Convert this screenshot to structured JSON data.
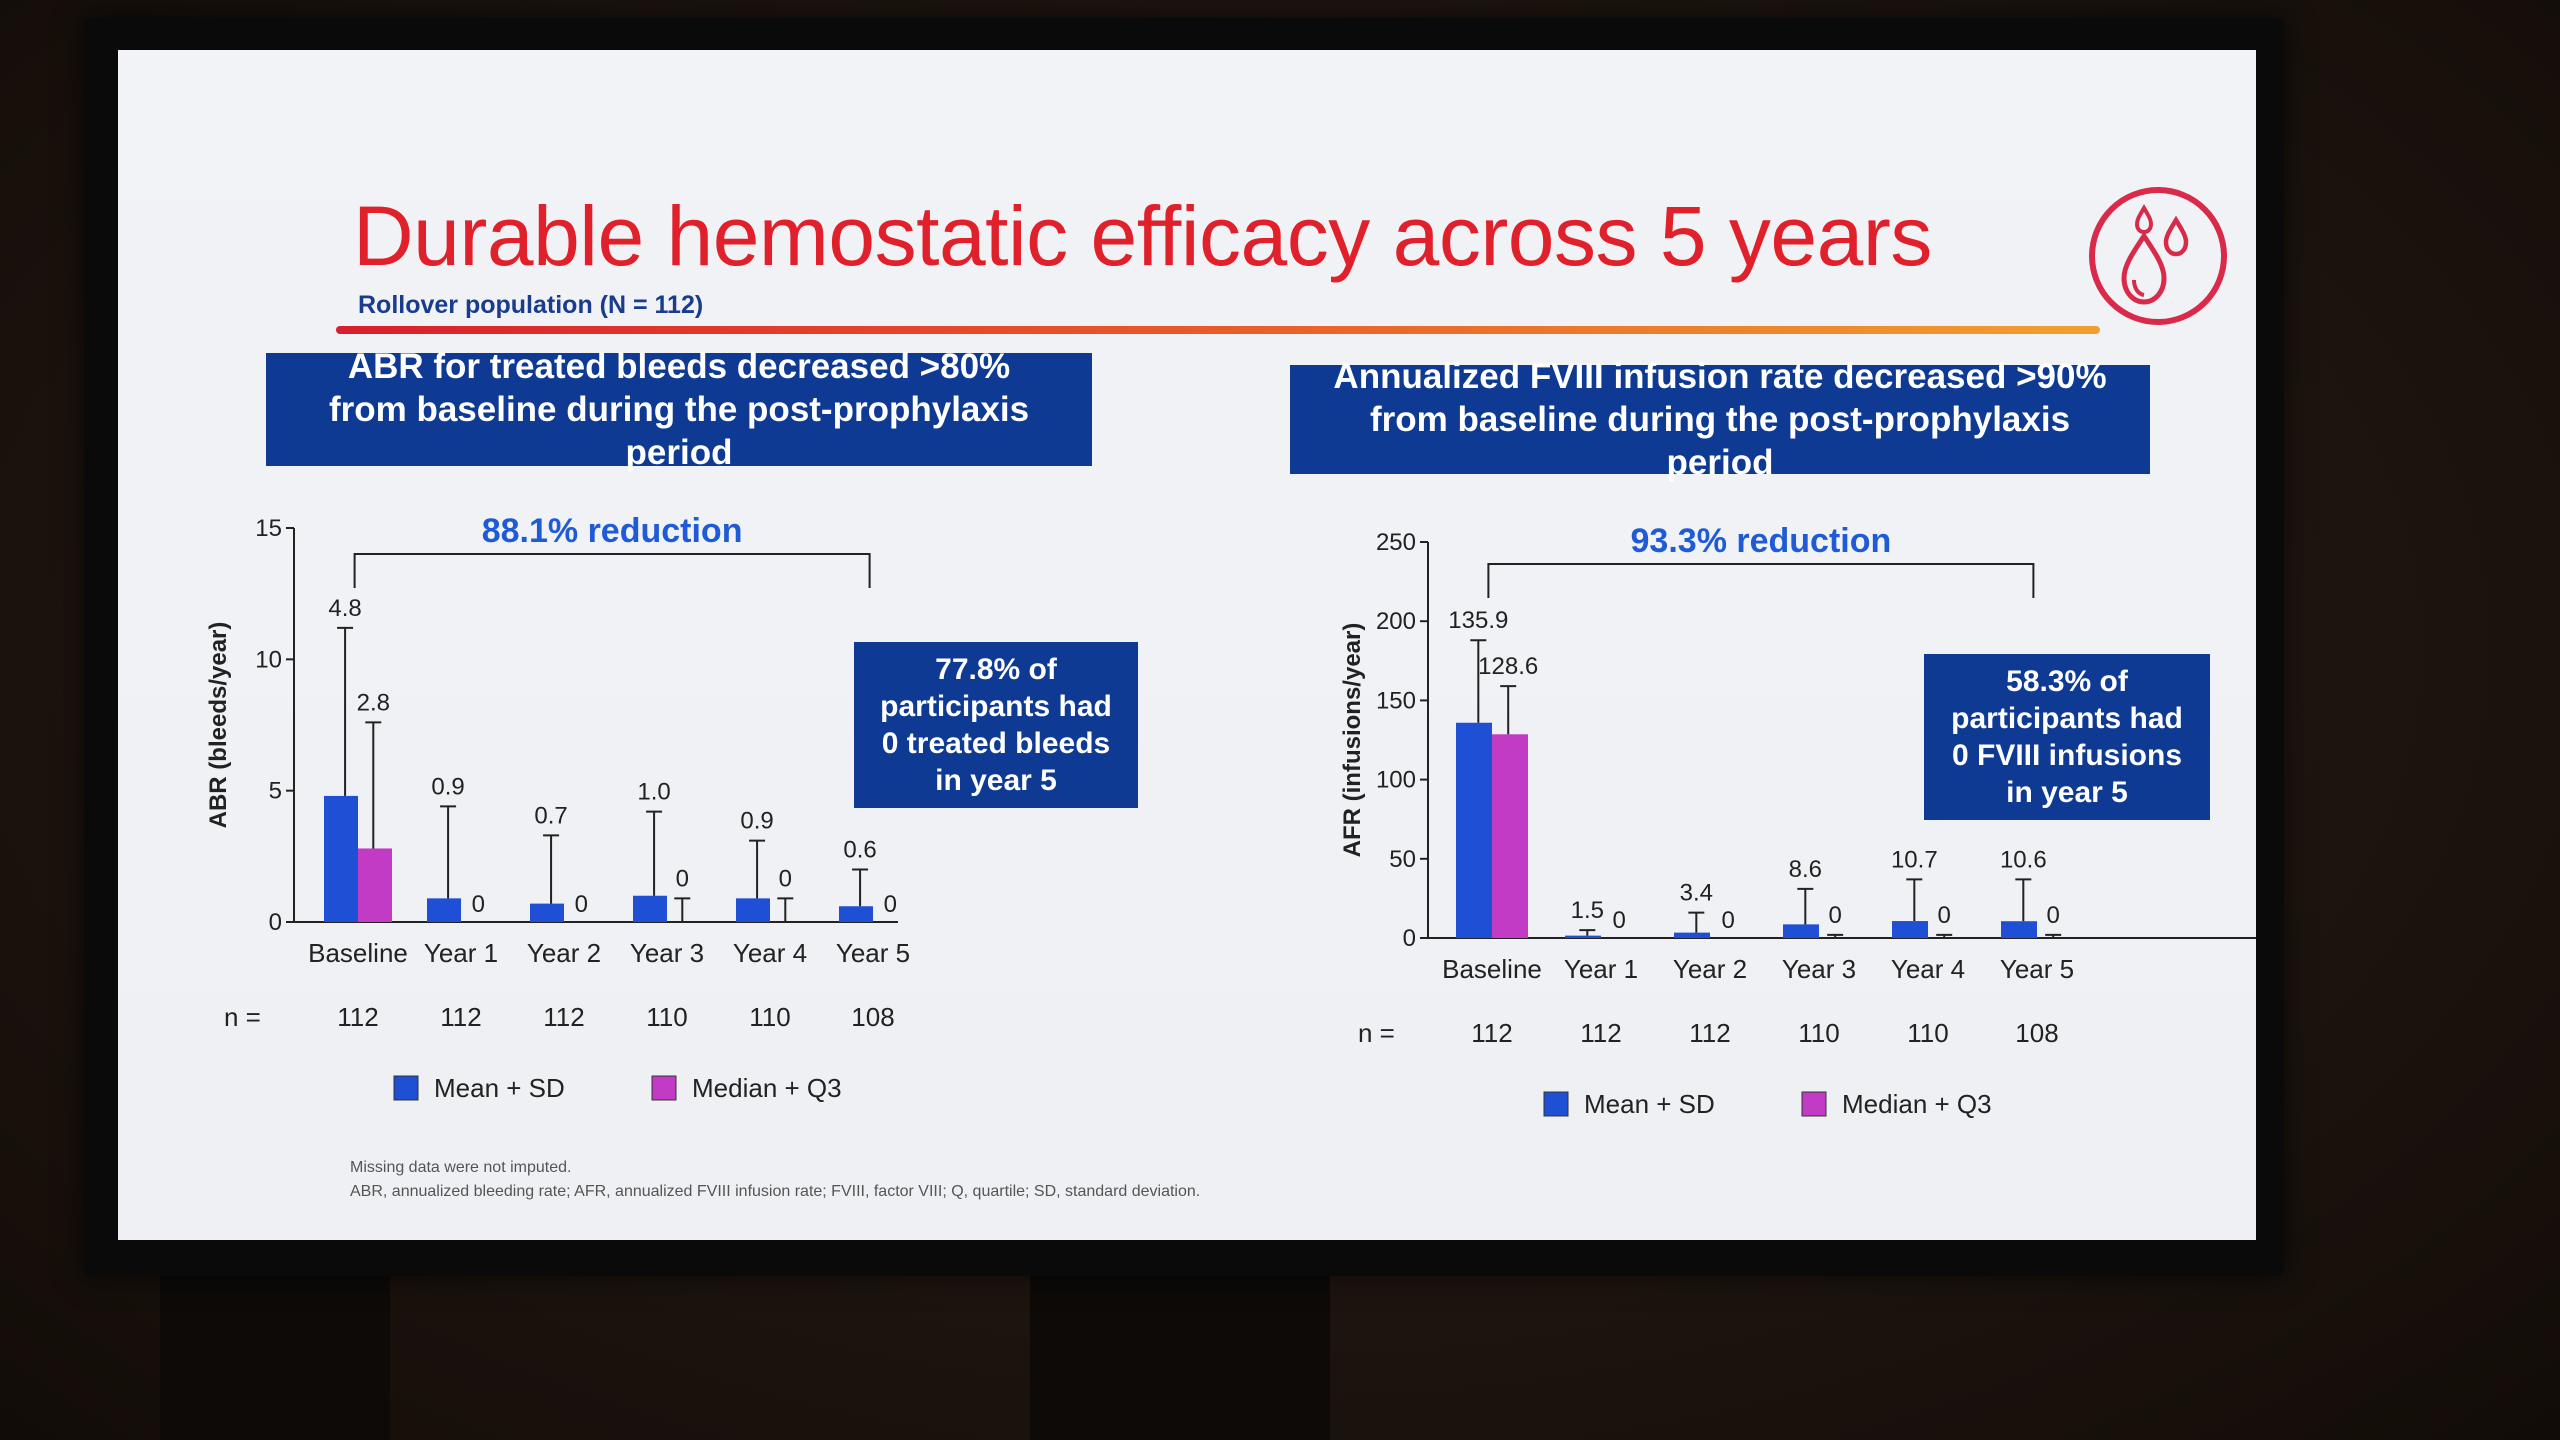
{
  "slide": {
    "title": "Durable hemostatic efficacy across 5 years",
    "subtitle": "Rollover population (N = 112)",
    "logo_icon": "blood-drops-icon",
    "footnote_line1": "Missing data were not imputed.",
    "footnote_line2": "ABR, annualized bleeding rate; AFR, annualized FVIII infusion rate; FVIII, factor VIII; Q, quartile; SD, standard deviation."
  },
  "colors": {
    "title_red": "#e0202a",
    "banner_blue": "#0e3a94",
    "mean_blue": "#1f4fd4",
    "median_magenta": "#c13bc4",
    "reduction_blue": "#1f5bd6"
  },
  "chart_data": [
    {
      "type": "bar",
      "banner": "ABR for treated bleeds decreased >80% from baseline during the post-prophylaxis period",
      "ylabel": "ABR (bleeds/year)",
      "ylim": [
        0,
        15
      ],
      "yticks": [
        0,
        5,
        10,
        15
      ],
      "categories": [
        "Baseline",
        "Year 1",
        "Year 2",
        "Year 3",
        "Year 4",
        "Year 5"
      ],
      "series": [
        {
          "name": "Mean + SD",
          "values": [
            4.8,
            0.9,
            0.7,
            1.0,
            0.9,
            0.6
          ],
          "error_top": [
            11.2,
            4.4,
            3.3,
            4.2,
            3.1,
            2.0
          ],
          "labels": [
            "4.8",
            "0.9",
            "0.7",
            "1.0",
            "0.9",
            "0.6"
          ]
        },
        {
          "name": "Median + Q3",
          "values": [
            2.8,
            0,
            0,
            0,
            0,
            0
          ],
          "error_top": [
            7.6,
            0,
            0,
            0.9,
            0.9,
            0
          ],
          "labels": [
            "2.8",
            "0",
            "0",
            "0",
            "0",
            "0"
          ]
        }
      ],
      "n_label": "n =",
      "n": [
        "112",
        "112",
        "112",
        "110",
        "110",
        "108"
      ],
      "reduction": "88.1% reduction",
      "callout": "77.8% of participants had 0 treated bleeds in year 5",
      "legend": [
        "Mean + SD",
        "Median + Q3"
      ]
    },
    {
      "type": "bar",
      "banner": "Annualized FVIII infusion rate decreased >90% from baseline during the post-prophylaxis period",
      "ylabel": "AFR (infusions/year)",
      "ylim": [
        0,
        250
      ],
      "yticks": [
        0,
        50,
        100,
        150,
        200,
        250
      ],
      "categories": [
        "Baseline",
        "Year 1",
        "Year 2",
        "Year 3",
        "Year 4",
        "Year 5"
      ],
      "series": [
        {
          "name": "Mean + SD",
          "values": [
            135.9,
            1.5,
            3.4,
            8.6,
            10.7,
            10.6
          ],
          "error_top": [
            188,
            5,
            16,
            31,
            37,
            37
          ],
          "labels": [
            "135.9",
            "1.5",
            "3.4",
            "8.6",
            "10.7",
            "10.6"
          ]
        },
        {
          "name": "Median + Q3",
          "values": [
            128.6,
            0,
            0,
            0,
            0,
            0
          ],
          "error_top": [
            159,
            0,
            0,
            2,
            2,
            2
          ],
          "labels": [
            "128.6",
            "0",
            "0",
            "0",
            "0",
            "0"
          ]
        }
      ],
      "n_label": "n =",
      "n": [
        "112",
        "112",
        "112",
        "110",
        "110",
        "108"
      ],
      "reduction": "93.3% reduction",
      "callout": "58.3% of participants had 0 FVIII infusions in year 5",
      "legend": [
        "Mean + SD",
        "Median + Q3"
      ]
    }
  ]
}
